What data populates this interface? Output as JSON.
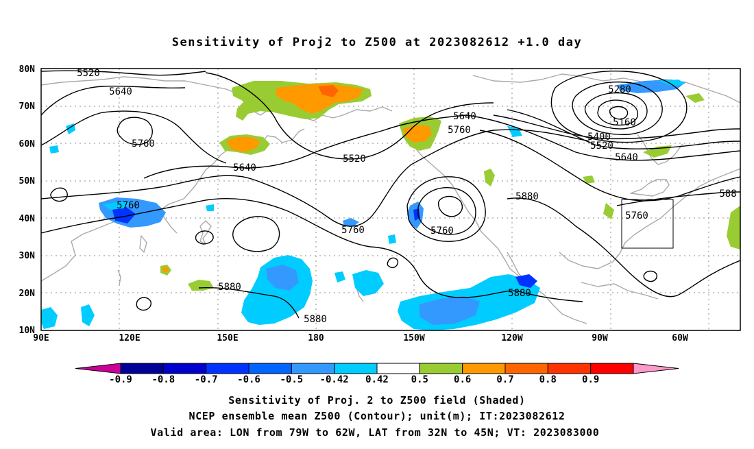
{
  "title": "Sensitivity of Proj2 to Z500 at 2023082612 +1.0 day",
  "map": {
    "lon_labels": [
      "90E",
      "120E",
      "150E",
      "180",
      "150W",
      "120W",
      "90W",
      "60W"
    ],
    "lat_labels": [
      "80N",
      "70N",
      "60N",
      "50N",
      "40N",
      "30N",
      "20N",
      "10N"
    ],
    "contour_labels": [
      "5520",
      "5640",
      "5760",
      "5640",
      "5520",
      "5640",
      "5760",
      "5280",
      "5160",
      "5400",
      "5520",
      "5640",
      "5760",
      "5760",
      "5760",
      "5880",
      "588",
      "5760",
      "5880",
      "5880",
      "5880"
    ],
    "shading_colors": {
      "positive_low": "#99cc33",
      "positive_mid": "#ff9900",
      "positive_high": "#ff3300",
      "negative_low": "#00ccff",
      "negative_mid": "#3399ff",
      "negative_high": "#0033ff"
    },
    "valid_area": {
      "lon": [
        -79,
        -62
      ],
      "lat": [
        32,
        45
      ]
    }
  },
  "colorbar": {
    "labels": [
      "-0.9",
      "-0.8",
      "-0.7",
      "-0.6",
      "-0.5",
      "-0.42",
      "0.42",
      "0.5",
      "0.6",
      "0.7",
      "0.8",
      "0.9"
    ],
    "colors": [
      "#cc0099",
      "#000099",
      "#0000cc",
      "#0033ff",
      "#0066ff",
      "#3399ff",
      "#00ccff",
      "#ffffff",
      "#99cc33",
      "#ff9900",
      "#ff6600",
      "#ff3300",
      "#ff0000",
      "#ff99cc"
    ]
  },
  "footer": {
    "line1": "Sensitivity of Proj. 2 to Z500 field (Shaded)",
    "line2": "NCEP ensemble mean Z500 (Contour); unit(m); IT:2023082612",
    "line3": "Valid area: LON from 79W to 62W, LAT from 32N to 45N; VT: 2023083000"
  }
}
